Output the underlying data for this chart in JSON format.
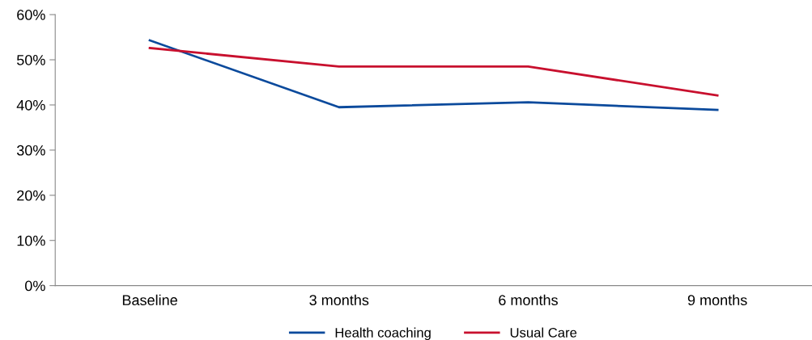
{
  "chart_data": {
    "type": "line",
    "categories": [
      "Baseline",
      "3 months",
      "6 months",
      "9 months"
    ],
    "series": [
      {
        "name": "Health coaching",
        "color": "#0b4a9c",
        "values": [
          54.3,
          39.5,
          40.6,
          38.9
        ]
      },
      {
        "name": "Usual Care",
        "color": "#c8102e",
        "values": [
          52.6,
          48.5,
          48.5,
          42.1
        ]
      }
    ],
    "ylim": [
      0,
      60
    ],
    "yticks": [
      {
        "value": 0,
        "label": "0%"
      },
      {
        "value": 10,
        "label": "10%"
      },
      {
        "value": 20,
        "label": "20%"
      },
      {
        "value": 30,
        "label": "30%"
      },
      {
        "value": 40,
        "label": "40%"
      },
      {
        "value": 50,
        "label": "50%"
      },
      {
        "value": 60,
        "label": "60%"
      }
    ],
    "grid": false,
    "legend": "bottom",
    "marker": "none",
    "line_style": "solid"
  }
}
